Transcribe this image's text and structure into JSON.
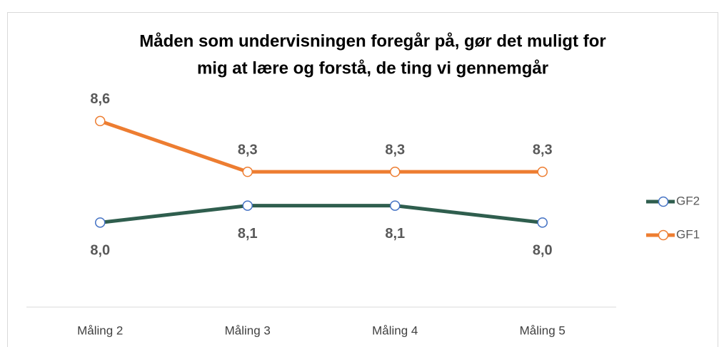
{
  "chart_data": {
    "type": "line",
    "title": [
      "Måden som undervisningen foregår på, gør det muligt for",
      "mig at lære og forstå, de ting vi gennemgår"
    ],
    "categories": [
      "Måling 2",
      "Måling 3",
      "Måling 4",
      "Måling 5"
    ],
    "series": [
      {
        "name": "GF2",
        "color": "#2f5e4e",
        "marker_color": "#4472c4",
        "values": [
          8.0,
          8.1,
          8.1,
          8.0
        ],
        "value_labels": [
          "8,0",
          "8,1",
          "8,1",
          "8,0"
        ]
      },
      {
        "name": "GF1",
        "color": "#ed7d31",
        "marker_color": "#ed7d31",
        "values": [
          8.6,
          8.3,
          8.3,
          8.3
        ],
        "value_labels": [
          "8,6",
          "8,3",
          "8,3",
          "8,3"
        ]
      }
    ],
    "ylim": [
      7.5,
      9.0
    ],
    "legend": "right"
  }
}
